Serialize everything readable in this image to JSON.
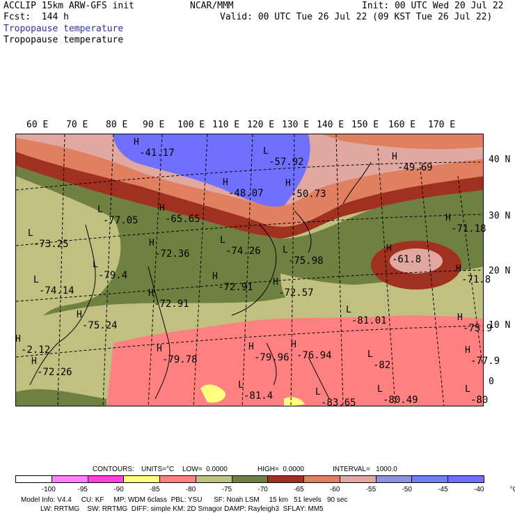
{
  "header": {
    "title_left": "ACCLIP 15km ARW-GFS init",
    "fcst": "Fcst:  144 h",
    "center": "NCAR/MMM",
    "init": "Init: 00 UTC Wed 20 Jul 22",
    "valid": "Valid: 00 UTC Tue 26 Jul 22 (09 KST Tue 26 Jul 22)",
    "field1": "Tropopause temperature",
    "field2": "Tropopause temperature"
  },
  "lon_labels": [
    "60 E",
    "70 E",
    "80 E",
    "90 E",
    "100 E",
    "110 E",
    "120 E",
    "130 E",
    "140 E",
    "150 E",
    "160 E",
    "170 E"
  ],
  "lat_labels": [
    "40 N",
    "30 N",
    "20 N",
    "10 N",
    "0"
  ],
  "extrema": [
    {
      "m": "H",
      "v": "-41.17"
    },
    {
      "m": "L",
      "v": "-57.92"
    },
    {
      "m": "H",
      "v": "-49.69"
    },
    {
      "m": "H",
      "v": "-48.07"
    },
    {
      "m": "H",
      "v": "-50.73"
    },
    {
      "m": "L",
      "v": "-77.05"
    },
    {
      "m": "H",
      "v": "-65.65"
    },
    {
      "m": "H",
      "v": "-71.18"
    },
    {
      "m": "L",
      "v": "-73.25"
    },
    {
      "m": "H",
      "v": "-72.36"
    },
    {
      "m": "L",
      "v": "-74.26"
    },
    {
      "m": "H",
      "v": "-61.8"
    },
    {
      "m": "L",
      "v": "-79.4"
    },
    {
      "m": "L",
      "v": "-75.98"
    },
    {
      "m": "H",
      "v": "-71.8"
    },
    {
      "m": "L",
      "v": "-74.14"
    },
    {
      "m": "H",
      "v": "-72.91"
    },
    {
      "m": "H",
      "v": "-72.57"
    },
    {
      "m": "H",
      "v": "-72.91"
    },
    {
      "m": "L",
      "v": "-81.01"
    },
    {
      "m": "H",
      "v": "-75.24"
    },
    {
      "m": "H",
      "v": "-75.9"
    },
    {
      "m": "H",
      "v": "-2.12"
    },
    {
      "m": "H",
      "v": "-79.78"
    },
    {
      "m": "H",
      "v": "-79.96"
    },
    {
      "m": "H",
      "v": "-76.94"
    },
    {
      "m": "L",
      "v": "-82"
    },
    {
      "m": "H",
      "v": "-77.9"
    },
    {
      "m": "H",
      "v": "-72.26"
    },
    {
      "m": "L",
      "v": "-81.4"
    },
    {
      "m": "L",
      "v": "-83.65"
    },
    {
      "m": "L",
      "v": "-80.49"
    },
    {
      "m": "L",
      "v": "-80"
    }
  ],
  "contours_line": {
    "label": "CONTOURS:",
    "units": "UNITS=°C",
    "low": "LOW=  0.0000",
    "high": "HIGH=  0.0000",
    "interval": "INTERVAL=   1000.0"
  },
  "colorbar": {
    "ticks": [
      "-100",
      "-95",
      "-90",
      "-85",
      "-80",
      "-75",
      "-70",
      "-65",
      "-60",
      "-55",
      "-50",
      "-45",
      "-40",
      "°C"
    ],
    "colors": [
      "#ffffff",
      "#ff80ff",
      "#ff40e0",
      "#ffff80",
      "#ff8080",
      "#c0c080",
      "#708040",
      "#a03020",
      "#e08060",
      "#e0a8a0",
      "#9090e0",
      "#7080f0",
      "#7070ff"
    ]
  },
  "model_info": {
    "line1": "Model Info: V4.4     CU: KF     MP: WDM 6class  PBL: YSU      SF: Noah LSM     15 km   51 levels   90 sec",
    "line2": "LW: RRTMG    SW: RRTMG  DIFF: simple KM: 2D Smagor DAMP: Rayleigh3  SFLAY: MM5"
  }
}
